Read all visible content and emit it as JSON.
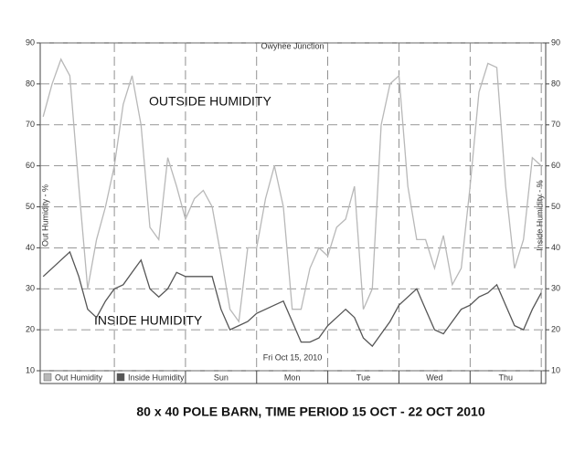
{
  "chart_data": {
    "type": "line",
    "title": "80 x 40 POLE BARN, TIME PERIOD 15 OCT - 22 OCT 2010",
    "subtitle": "Owyhee Junction",
    "date_label": "Fri Oct 15, 2010",
    "annotations": [
      "OUTSIDE HUMIDITY",
      "INSIDE HUMIDITY"
    ],
    "ylabel": "Out Humidity - %",
    "y2label": "Inside Humidity - %",
    "x": [
      0,
      3,
      6,
      9,
      12,
      15,
      18,
      21,
      24,
      27,
      30,
      33,
      36,
      39,
      42,
      45,
      48,
      51,
      54,
      57,
      60,
      63,
      66,
      69,
      72,
      75,
      78,
      81,
      84,
      87,
      90,
      93,
      96,
      99,
      102,
      105,
      108,
      111,
      114,
      117,
      120,
      123,
      126,
      129,
      132,
      135,
      138,
      141,
      144,
      147,
      150,
      153,
      156,
      159,
      162,
      165,
      168
    ],
    "xlim": [
      -1,
      169.5
    ],
    "xticks": [
      {
        "value": 60,
        "label": "Sun"
      },
      {
        "value": 84,
        "label": "Mon"
      },
      {
        "value": 108,
        "label": "Tue"
      },
      {
        "value": 132,
        "label": "Wed"
      },
      {
        "value": 156,
        "label": "Thu"
      }
    ],
    "xgrid": [
      24,
      48,
      72,
      96,
      120,
      144,
      168
    ],
    "ylim": [
      10,
      90
    ],
    "yticks": [
      10,
      20,
      30,
      40,
      50,
      60,
      70,
      80,
      90
    ],
    "y2lim": [
      10,
      90
    ],
    "y2ticks": [
      10,
      20,
      30,
      40,
      50,
      60,
      70,
      80,
      90
    ],
    "grid": true,
    "series": [
      {
        "name": "Out Humidity",
        "color": "#b8b8b8",
        "values": [
          72,
          80,
          86,
          82,
          55,
          30,
          42,
          50,
          60,
          75,
          82,
          70,
          45,
          42,
          62,
          55,
          47,
          52,
          54,
          50,
          38,
          25,
          22,
          40,
          40,
          52,
          60,
          50,
          25,
          25,
          35,
          40,
          38,
          45,
          47,
          55,
          25,
          30,
          70,
          80,
          82,
          55,
          42,
          42,
          35,
          43,
          31,
          35,
          55,
          78,
          85,
          84,
          55,
          35,
          42,
          62,
          60
        ]
      },
      {
        "name": "Inside Humidity",
        "color": "#555555",
        "axis": "y2",
        "values": [
          33,
          35,
          37,
          39,
          33,
          25,
          23,
          27,
          30,
          31,
          34,
          37,
          30,
          28,
          30,
          34,
          33,
          33,
          33,
          33,
          25,
          20,
          21,
          22,
          24,
          25,
          26,
          27,
          22,
          17,
          17,
          18,
          21,
          23,
          25,
          23,
          18,
          16,
          19,
          22,
          26,
          28,
          30,
          25,
          20,
          19,
          22,
          25,
          26,
          28,
          29,
          31,
          26,
          21,
          20,
          25,
          29
        ]
      }
    ]
  }
}
